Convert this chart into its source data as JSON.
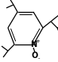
{
  "bg_color": "#ffffff",
  "bond_color": "#000000",
  "text_color": "#000000",
  "figsize": [
    0.73,
    0.78
  ],
  "dpi": 100,
  "n_label": "N",
  "o_label": "O",
  "plus_label": "+",
  "minus_label": "-",
  "font_size_atom": 7.0,
  "font_size_charge": 5.0,
  "lw": 0.9,
  "lw2": 0.7
}
